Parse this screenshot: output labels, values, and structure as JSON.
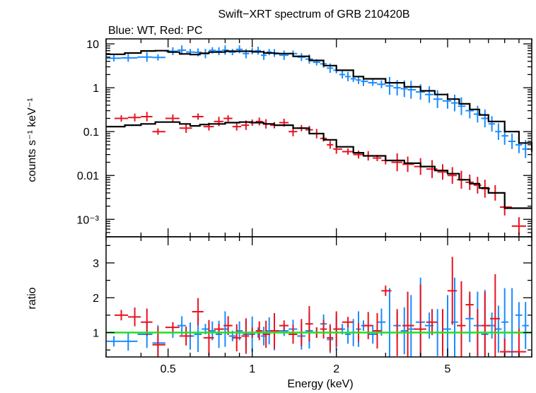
{
  "chart_data": {
    "type": "scatter",
    "title": "Swift−XRT spectrum of GRB 210420B",
    "subtitle": "Blue: WT, Red: PC",
    "xlabel": "Energy (keV)",
    "xscale": "log",
    "xlim": [
      0.3,
      10
    ],
    "x_ticks": [
      0.5,
      1,
      2,
      5
    ],
    "x_tick_labels": [
      "0.5",
      "1",
      "2",
      "5"
    ],
    "grid": false,
    "colors": {
      "wt": "#1a8cff",
      "pc": "#e8131f",
      "model": "#000000",
      "unity": "#22dd22"
    },
    "panels": [
      {
        "name": "spectrum",
        "ylabel": "counts s⁻¹ keV⁻¹",
        "yscale": "log",
        "ylim": [
          0.0004,
          13
        ],
        "y_ticks": [
          10,
          1,
          0.1,
          0.01,
          0.001
        ],
        "y_tick_labels": [
          "10",
          "1",
          "0.1",
          "0.01",
          "10⁻³"
        ],
        "series": [
          {
            "x": [
              0.32,
              0.36,
              0.42,
              0.46,
              0.52,
              0.56,
              0.6,
              0.64,
              0.68,
              0.72,
              0.76,
              0.8,
              0.85,
              0.9,
              0.95,
              1.0,
              1.05,
              1.1,
              1.15,
              1.2,
              1.3,
              1.4,
              1.5,
              1.6,
              1.7,
              1.8,
              1.9,
              2.0,
              2.1,
              2.2,
              2.3,
              2.4,
              2.5,
              2.7,
              2.9,
              3.1,
              3.3,
              3.5,
              3.7,
              4.0,
              4.3,
              4.6,
              5.0,
              5.3,
              5.6,
              6.0,
              6.4,
              6.8,
              7.2,
              7.6,
              8.0,
              8.5,
              9.0,
              9.5
            ],
            "y": [
              4.7,
              4.8,
              5.0,
              4.9,
              6.8,
              7.2,
              6.5,
              6.4,
              6.0,
              7.1,
              6.8,
              7.2,
              6.5,
              7.5,
              6.0,
              6.8,
              7.0,
              5.5,
              6.5,
              6.2,
              5.5,
              6.0,
              5.0,
              4.5,
              3.8,
              3.5,
              2.8,
              2.5,
              2.0,
              1.8,
              1.6,
              1.5,
              1.4,
              1.3,
              1.2,
              1.1,
              1.0,
              0.95,
              0.9,
              0.8,
              0.7,
              0.55,
              0.5,
              0.45,
              0.38,
              0.3,
              0.25,
              0.2,
              0.15,
              0.1,
              0.08,
              0.06,
              0.05,
              0.04
            ]
          },
          {
            "x": [
              0.34,
              0.38,
              0.42,
              0.46,
              0.52,
              0.58,
              0.64,
              0.7,
              0.76,
              0.82,
              0.88,
              0.95,
              1.0,
              1.06,
              1.12,
              1.2,
              1.3,
              1.4,
              1.5,
              1.6,
              1.7,
              1.8,
              1.9,
              2.0,
              2.2,
              2.4,
              2.6,
              2.8,
              3.0,
              3.3,
              3.6,
              4.0,
              4.4,
              4.8,
              5.2,
              5.6,
              6.0,
              6.4,
              6.8,
              7.4,
              8.0,
              9.0
            ],
            "y": [
              0.2,
              0.21,
              0.22,
              0.1,
              0.2,
              0.12,
              0.22,
              0.13,
              0.17,
              0.2,
              0.13,
              0.14,
              0.16,
              0.17,
              0.15,
              0.14,
              0.16,
              0.1,
              0.12,
              0.11,
              0.09,
              0.07,
              0.05,
              0.04,
              0.035,
              0.03,
              0.028,
              0.025,
              0.022,
              0.02,
              0.018,
              0.016,
              0.014,
              0.012,
              0.01,
              0.008,
              0.007,
              0.006,
              0.005,
              0.004,
              0.0019,
              0.0007
            ]
          }
        ],
        "model": {
          "wt": {
            "x": [
              0.3,
              0.35,
              0.4,
              0.45,
              0.5,
              0.55,
              0.6,
              0.65,
              0.7,
              0.8,
              0.9,
              1.0,
              1.1,
              1.2,
              1.4,
              1.6,
              1.8,
              2.0,
              2.3,
              2.5,
              3.0,
              3.5,
              4.0,
              4.5,
              5.0,
              5.5,
              6.0,
              6.5,
              7.0,
              8.0,
              9.0,
              10.0
            ],
            "y": [
              5.8,
              6.2,
              6.9,
              7.0,
              6.5,
              5.9,
              5.7,
              6.1,
              6.5,
              6.8,
              6.8,
              6.6,
              6.2,
              6.0,
              5.2,
              4.2,
              3.2,
              2.5,
              1.8,
              1.6,
              1.3,
              1.05,
              0.85,
              0.7,
              0.55,
              0.43,
              0.32,
              0.24,
              0.17,
              0.1,
              0.055,
              0.035
            ]
          },
          "pc": {
            "x": [
              0.3,
              0.35,
              0.4,
              0.45,
              0.5,
              0.55,
              0.6,
              0.65,
              0.7,
              0.8,
              0.9,
              1.0,
              1.1,
              1.2,
              1.4,
              1.6,
              1.8,
              2.0,
              2.3,
              2.5,
              3.0,
              3.5,
              4.0,
              4.5,
              5.0,
              5.5,
              6.0,
              6.5,
              7.0,
              8.0,
              9.0,
              10.0
            ],
            "y": [
              0.13,
              0.14,
              0.15,
              0.165,
              0.165,
              0.15,
              0.135,
              0.145,
              0.15,
              0.16,
              0.165,
              0.16,
              0.15,
              0.14,
              0.12,
              0.09,
              0.065,
              0.045,
              0.033,
              0.028,
              0.022,
              0.019,
              0.016,
              0.013,
              0.011,
              0.008,
              0.0065,
              0.0052,
              0.004,
              0.0018,
              0.0018,
              0.0018
            ]
          }
        }
      },
      {
        "name": "ratio",
        "ylabel": "ratio",
        "yscale": "linear",
        "ylim": [
          0.3,
          3.75
        ],
        "y_ticks": [
          1,
          2,
          3
        ],
        "y_tick_labels": [
          "1",
          "2",
          "3"
        ],
        "reference_line": 1,
        "series": [
          {
            "x": [
              0.32,
              0.36,
              0.42,
              0.46,
              0.52,
              0.56,
              0.6,
              0.64,
              0.68,
              0.72,
              0.76,
              0.8,
              0.85,
              0.9,
              0.95,
              1.0,
              1.05,
              1.1,
              1.15,
              1.2,
              1.3,
              1.4,
              1.5,
              1.6,
              1.7,
              1.8,
              1.9,
              2.0,
              2.1,
              2.2,
              2.3,
              2.4,
              2.5,
              2.7,
              2.9,
              3.1,
              3.3,
              3.5,
              3.7,
              4.0,
              4.3,
              4.6,
              5.0,
              5.3,
              5.6,
              6.0,
              6.4,
              6.8,
              7.2,
              7.6,
              8.0,
              8.5,
              9.0,
              9.5
            ],
            "y": [
              0.75,
              0.75,
              0.95,
              0.7,
              1.0,
              1.2,
              0.9,
              0.95,
              1.1,
              1.05,
              0.95,
              1.1,
              0.9,
              1.05,
              0.95,
              0.95,
              1.0,
              0.9,
              1.05,
              1.0,
              1.05,
              1.1,
              0.9,
              1.05,
              1.0,
              1.25,
              0.8,
              1.0,
              1.1,
              0.95,
              1.0,
              1.1,
              1.2,
              0.95,
              1.3,
              1.0,
              1.2,
              1.05,
              1.1,
              1.3,
              1.2,
              1.0,
              1.1,
              1.3,
              1.0,
              1.4,
              1.2,
              0.95,
              1.2,
              1.1,
              1.3,
              1.0,
              1.5,
              1.2
            ]
          },
          {
            "x": [
              0.34,
              0.38,
              0.42,
              0.46,
              0.52,
              0.58,
              0.64,
              0.7,
              0.76,
              0.82,
              0.88,
              0.95,
              1.0,
              1.06,
              1.12,
              1.2,
              1.3,
              1.4,
              1.5,
              1.6,
              1.7,
              1.8,
              1.9,
              2.0,
              2.2,
              2.4,
              2.6,
              2.8,
              3.0,
              3.3,
              3.6,
              4.0,
              4.4,
              4.8,
              5.2,
              5.6,
              6.0,
              6.4,
              6.8,
              7.4,
              8.0,
              9.0
            ],
            "y": [
              1.5,
              1.45,
              1.3,
              0.65,
              1.15,
              0.9,
              1.6,
              0.85,
              1.1,
              1.2,
              0.85,
              0.9,
              1.0,
              1.05,
              0.95,
              1.05,
              1.2,
              0.95,
              1.0,
              1.25,
              1.0,
              1.1,
              0.85,
              1.1,
              1.3,
              1.0,
              1.2,
              1.05,
              2.2,
              1.0,
              1.2,
              1.1,
              1.3,
              1.0,
              2.2,
              1.2,
              1.8,
              1.0,
              1.2,
              1.4,
              0.45,
              0.45
            ]
          }
        ]
      }
    ]
  }
}
